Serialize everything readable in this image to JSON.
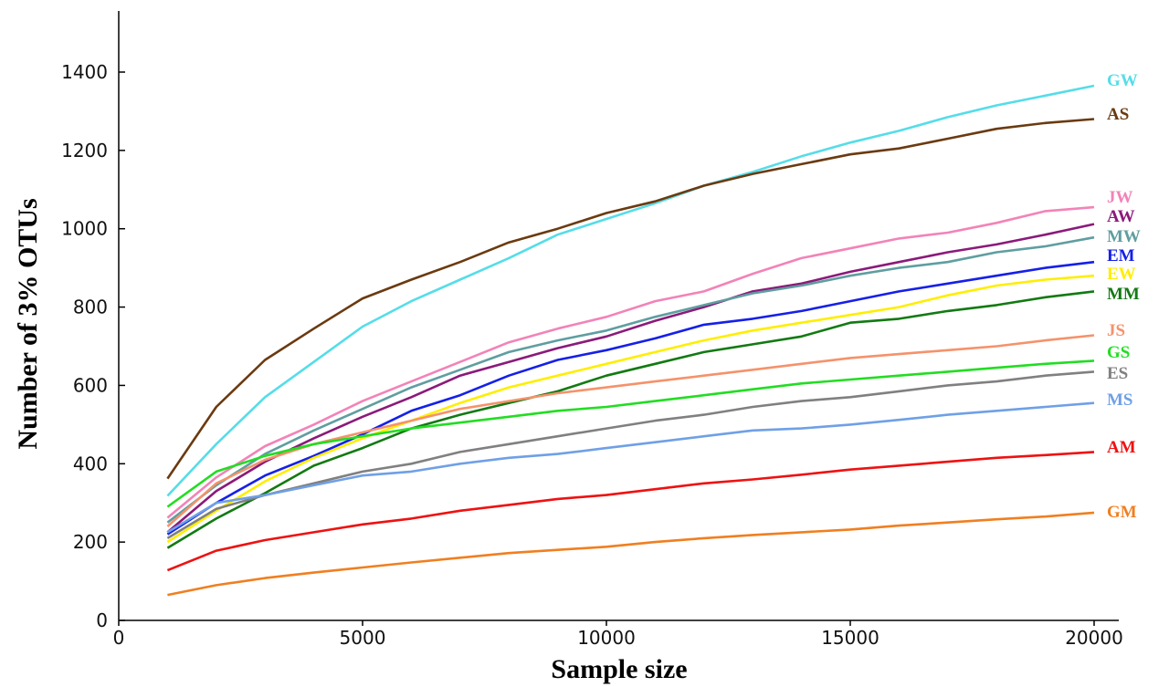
{
  "chart_data": {
    "type": "line",
    "title": "",
    "xlabel": "Sample size",
    "ylabel": "Number of 3% OTUs",
    "xlim": [
      0,
      20500
    ],
    "ylim": [
      0,
      1560
    ],
    "x_ticks": [
      0,
      5000,
      10000,
      15000,
      20000
    ],
    "y_ticks": [
      0,
      200,
      400,
      600,
      800,
      1000,
      1200,
      1400
    ],
    "grid": false,
    "legend": "right-end labels",
    "x": [
      1000,
      2000,
      3000,
      4000,
      5000,
      6000,
      7000,
      8000,
      9000,
      10000,
      11000,
      12000,
      13000,
      14000,
      15000,
      16000,
      17000,
      18000,
      19000,
      20000
    ],
    "series": [
      {
        "name": "GW",
        "color": "#55dde8",
        "values": [
          318,
          450,
          570,
          660,
          750,
          815,
          870,
          925,
          985,
          1025,
          1065,
          1110,
          1145,
          1185,
          1220,
          1250,
          1285,
          1315,
          1340,
          1365
        ]
      },
      {
        "name": "AS",
        "color": "#6b3a10",
        "values": [
          362,
          545,
          665,
          745,
          822,
          870,
          915,
          965,
          1000,
          1040,
          1070,
          1110,
          1140,
          1165,
          1190,
          1205,
          1230,
          1255,
          1270,
          1280
        ]
      },
      {
        "name": "JW",
        "color": "#f283b8",
        "values": [
          262,
          365,
          445,
          500,
          560,
          610,
          660,
          710,
          745,
          775,
          815,
          840,
          885,
          925,
          950,
          975,
          990,
          1015,
          1045,
          1055
        ]
      },
      {
        "name": "AW",
        "color": "#8b1a7a",
        "values": [
          225,
          330,
          405,
          465,
          520,
          570,
          625,
          660,
          695,
          725,
          765,
          800,
          840,
          860,
          890,
          915,
          940,
          960,
          985,
          1012
        ]
      },
      {
        "name": "MW",
        "color": "#5f9ea0",
        "values": [
          250,
          345,
          425,
          485,
          540,
          595,
          640,
          685,
          715,
          740,
          775,
          805,
          835,
          855,
          880,
          900,
          915,
          940,
          955,
          978
        ]
      },
      {
        "name": "EM",
        "color": "#1520e8",
        "values": [
          220,
          300,
          370,
          420,
          475,
          535,
          575,
          625,
          665,
          690,
          720,
          755,
          770,
          790,
          815,
          840,
          860,
          880,
          900,
          915
        ]
      },
      {
        "name": "EW",
        "color": "#ffee00",
        "values": [
          200,
          280,
          355,
          415,
          465,
          510,
          555,
          595,
          625,
          655,
          685,
          715,
          740,
          760,
          780,
          800,
          830,
          855,
          870,
          880
        ]
      },
      {
        "name": "MM",
        "color": "#127a12",
        "values": [
          185,
          260,
          325,
          395,
          440,
          490,
          525,
          555,
          585,
          625,
          655,
          685,
          705,
          725,
          760,
          770,
          790,
          805,
          825,
          840
        ]
      },
      {
        "name": "JS",
        "color": "#f5926b",
        "values": [
          240,
          350,
          410,
          450,
          480,
          510,
          540,
          560,
          580,
          595,
          610,
          625,
          640,
          655,
          670,
          680,
          690,
          700,
          715,
          728
        ]
      },
      {
        "name": "GS",
        "color": "#22dd22",
        "values": [
          290,
          380,
          420,
          450,
          470,
          490,
          505,
          520,
          535,
          545,
          560,
          575,
          590,
          605,
          615,
          625,
          635,
          645,
          655,
          663
        ]
      },
      {
        "name": "ES",
        "color": "#808080",
        "values": [
          210,
          285,
          320,
          350,
          380,
          400,
          430,
          450,
          470,
          490,
          510,
          525,
          545,
          560,
          570,
          585,
          600,
          610,
          625,
          635
        ]
      },
      {
        "name": "MS",
        "color": "#6fa0e6",
        "values": [
          225,
          300,
          320,
          345,
          370,
          380,
          400,
          415,
          425,
          440,
          455,
          470,
          485,
          490,
          500,
          512,
          525,
          535,
          545,
          555
        ]
      },
      {
        "name": "AM",
        "color": "#ee1111",
        "values": [
          128,
          178,
          205,
          225,
          245,
          260,
          280,
          295,
          310,
          320,
          335,
          350,
          360,
          372,
          385,
          395,
          405,
          415,
          422,
          430
        ]
      },
      {
        "name": "GM",
        "color": "#f07f20",
        "values": [
          65,
          90,
          108,
          122,
          135,
          148,
          160,
          172,
          180,
          188,
          200,
          210,
          218,
          225,
          232,
          242,
          250,
          258,
          265,
          275
        ]
      }
    ]
  }
}
